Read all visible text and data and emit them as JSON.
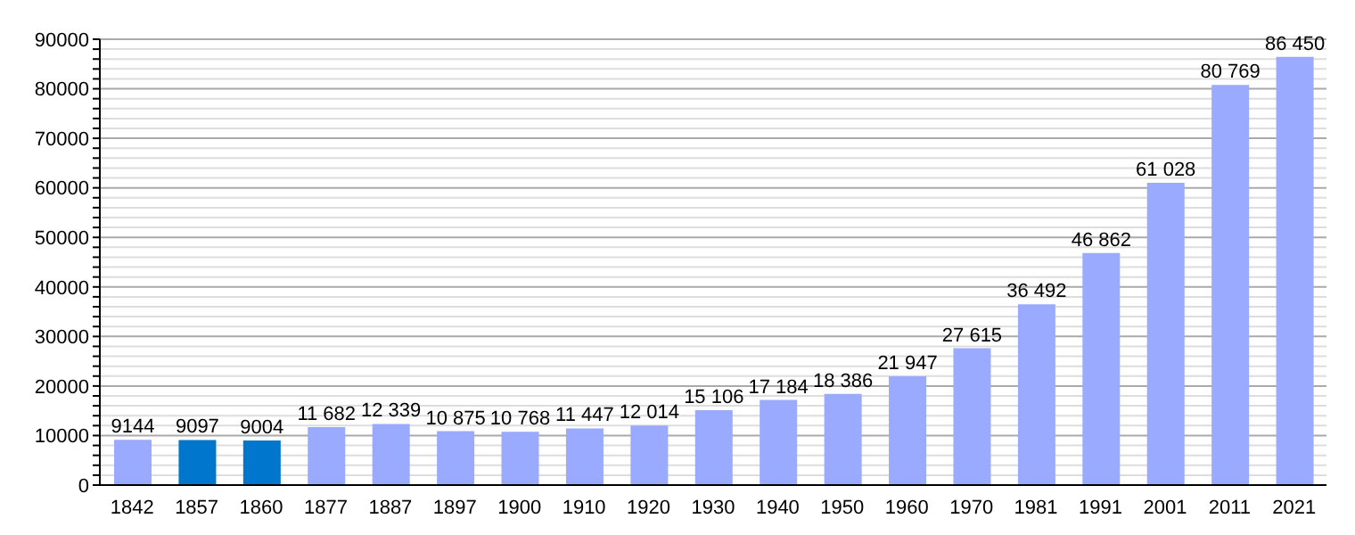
{
  "chart_data": {
    "type": "bar",
    "categories": [
      "1842",
      "1857",
      "1860",
      "1877",
      "1887",
      "1897",
      "1900",
      "1910",
      "1920",
      "1930",
      "1940",
      "1950",
      "1960",
      "1970",
      "1981",
      "1991",
      "2001",
      "2011",
      "2021"
    ],
    "values": [
      9144,
      9097,
      9004,
      11682,
      12339,
      10875,
      10768,
      11447,
      12014,
      15106,
      17184,
      18386,
      21947,
      27615,
      36492,
      46862,
      61028,
      80769,
      86450
    ],
    "value_labels": [
      "9144",
      "9097",
      "9004",
      "11 682",
      "12 339",
      "10 875",
      "10 768",
      "11 447",
      "12 014",
      "15 106",
      "17 184",
      "18 386",
      "21 947",
      "27 615",
      "36 492",
      "46 862",
      "61 028",
      "80 769",
      "86 450"
    ],
    "colors": [
      "#99aaff",
      "#0077cc",
      "#0077cc",
      "#99aaff",
      "#99aaff",
      "#99aaff",
      "#99aaff",
      "#99aaff",
      "#99aaff",
      "#99aaff",
      "#99aaff",
      "#99aaff",
      "#99aaff",
      "#99aaff",
      "#99aaff",
      "#99aaff",
      "#99aaff",
      "#99aaff",
      "#99aaff"
    ],
    "ylim": [
      0,
      90000
    ],
    "yticks": [
      0,
      {
        "value": 2000,
        "label": null
      },
      {
        "value": 4000,
        "label": null
      },
      {
        "value": 6000,
        "label": null
      },
      {
        "value": 8000,
        "label": null
      },
      10000,
      {
        "value": 12000,
        "label": null
      },
      {
        "value": 14000,
        "label": null
      },
      {
        "value": 16000,
        "label": null
      },
      {
        "value": 18000,
        "label": null
      },
      20000,
      {
        "value": 22000,
        "label": null
      },
      {
        "value": 24000,
        "label": null
      },
      {
        "value": 26000,
        "label": null
      },
      {
        "value": 28000,
        "label": null
      },
      30000,
      {
        "value": 32000,
        "label": null
      },
      {
        "value": 34000,
        "label": null
      },
      {
        "value": 36000,
        "label": null
      },
      {
        "value": 38000,
        "label": null
      },
      40000,
      {
        "value": 42000,
        "label": null
      },
      {
        "value": 44000,
        "label": null
      },
      {
        "value": 46000,
        "label": null
      },
      {
        "value": 48000,
        "label": null
      },
      50000,
      {
        "value": 52000,
        "label": null
      },
      {
        "value": 54000,
        "label": null
      },
      {
        "value": 56000,
        "label": null
      },
      {
        "value": 58000,
        "label": null
      },
      60000,
      {
        "value": 62000,
        "label": null
      },
      {
        "value": 64000,
        "label": null
      },
      {
        "value": 66000,
        "label": null
      },
      {
        "value": 68000,
        "label": null
      },
      70000,
      {
        "value": 72000,
        "label": null
      },
      {
        "value": 74000,
        "label": null
      },
      {
        "value": 76000,
        "label": null
      },
      {
        "value": 78000,
        "label": null
      },
      80000,
      {
        "value": 82000,
        "label": null
      },
      {
        "value": 84000,
        "label": null
      },
      {
        "value": 86000,
        "label": null
      },
      {
        "value": 88000,
        "label": null
      },
      90000
    ],
    "grid": "y",
    "legend": false
  }
}
